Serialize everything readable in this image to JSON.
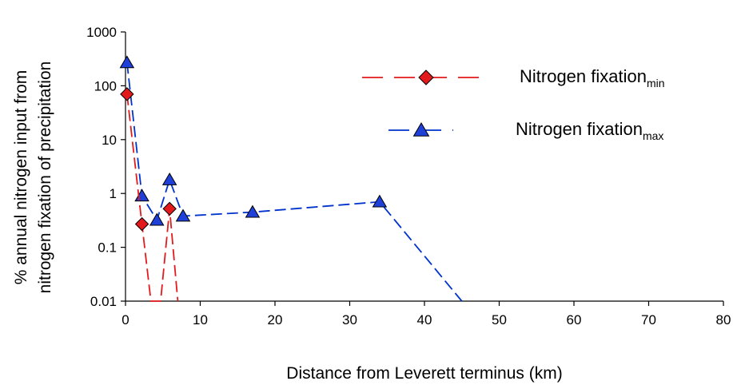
{
  "chart_data": {
    "type": "line",
    "title": "",
    "xlabel": "Distance from Leverett terminus (km)",
    "ylabel_lines": [
      "% annual nitrogen input from",
      "nitrogen fixation of precipitation"
    ],
    "xlim": [
      0,
      80
    ],
    "ylim": [
      0.01,
      1000
    ],
    "yscale": "log",
    "x_ticks": [
      0,
      10,
      20,
      30,
      40,
      50,
      60,
      70,
      80
    ],
    "x_tick_labels": [
      "0",
      "10",
      "20",
      "30",
      "40",
      "50",
      "60",
      "70",
      "80"
    ],
    "y_ticks": [
      0.01,
      0.1,
      1,
      10,
      100,
      1000
    ],
    "y_tick_labels": [
      "0.01",
      "0.1",
      "1",
      "10",
      "100",
      "1000"
    ],
    "grid": false,
    "legend_position": "top-right",
    "series": [
      {
        "name": "Nitrogen fixation",
        "name_subscript": "min",
        "color": "#e31a1c",
        "marker": "diamond",
        "marker_fill": "#e31a1c",
        "line_style": "dashed",
        "points": [
          {
            "x": 0.2,
            "y": 70
          },
          {
            "x": 2.2,
            "y": 0.27
          },
          {
            "x": 3.4,
            "y": 0.01
          },
          {
            "x": 4.7,
            "y": 0.01
          },
          {
            "x": 5.9,
            "y": 0.52
          },
          {
            "x": 7.0,
            "y": 0.01
          }
        ],
        "markers": [
          {
            "x": 0.2,
            "y": 70
          },
          {
            "x": 2.2,
            "y": 0.27
          },
          {
            "x": 5.9,
            "y": 0.52
          }
        ]
      },
      {
        "name": "Nitrogen fixation",
        "name_subscript": "max",
        "color": "#0033cc",
        "marker": "triangle",
        "marker_fill": "#1f3fd9",
        "line_style": "dashed",
        "points": [
          {
            "x": 0.2,
            "y": 270
          },
          {
            "x": 2.2,
            "y": 0.9
          },
          {
            "x": 4.2,
            "y": 0.32
          },
          {
            "x": 5.9,
            "y": 1.8
          },
          {
            "x": 7.7,
            "y": 0.38
          },
          {
            "x": 17,
            "y": 0.45
          },
          {
            "x": 34,
            "y": 0.7
          },
          {
            "x": 45,
            "y": 0.01
          }
        ],
        "markers": [
          {
            "x": 0.2,
            "y": 270
          },
          {
            "x": 2.2,
            "y": 0.9
          },
          {
            "x": 4.2,
            "y": 0.32
          },
          {
            "x": 5.9,
            "y": 1.8
          },
          {
            "x": 7.7,
            "y": 0.38
          },
          {
            "x": 17,
            "y": 0.45
          },
          {
            "x": 34,
            "y": 0.7
          }
        ]
      }
    ]
  }
}
